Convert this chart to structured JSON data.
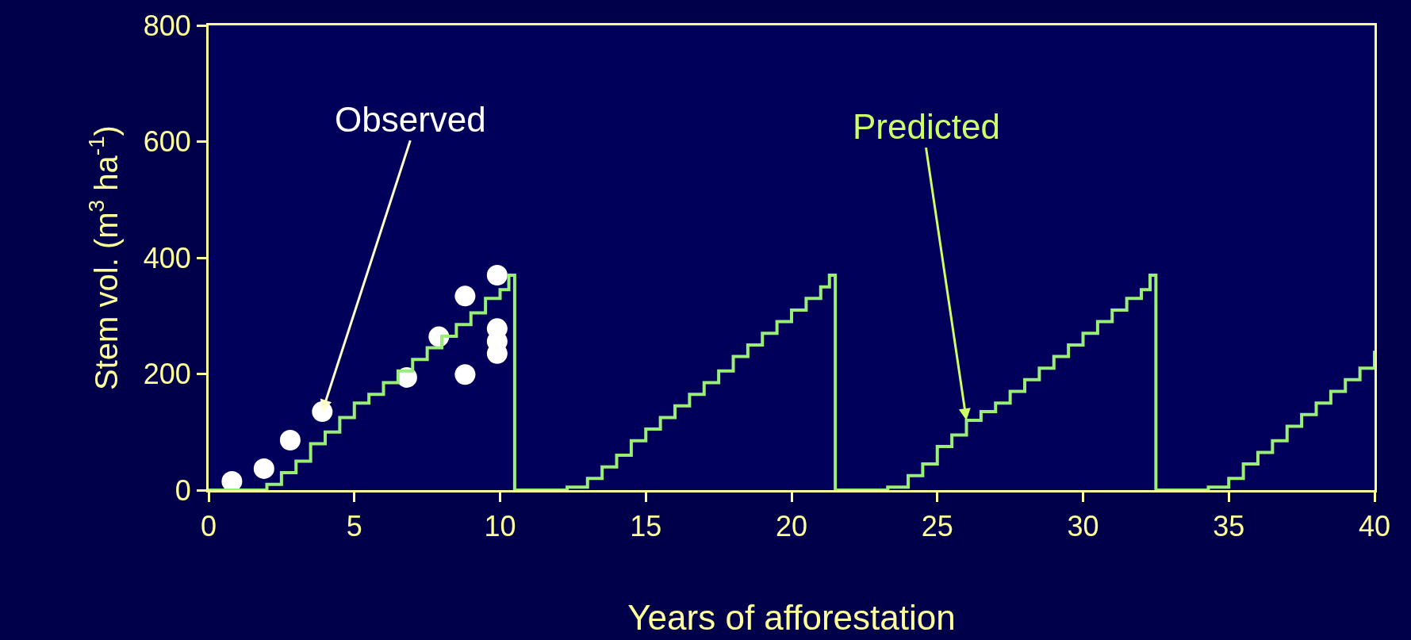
{
  "chart_data": {
    "type": "scatter",
    "xlabel": "Years of afforestation",
    "ylabel": "Stem vol. (m$^{3}$ ha$^{-1}$)",
    "xlim": [
      0,
      40
    ],
    "xticks": [
      0,
      5,
      10,
      15,
      20,
      25,
      30,
      35,
      40
    ],
    "ylim": [
      0,
      800
    ],
    "yticks": [
      0,
      200,
      400,
      600,
      800
    ],
    "grid": false,
    "series": [
      {
        "type": "step",
        "color": "#99ee77",
        "marker": "none",
        "x": [
          0,
          1.5,
          2,
          2.5,
          3,
          3.5,
          4,
          4.5,
          5,
          5.5,
          6,
          6.5,
          7,
          7.5,
          8,
          8.5,
          9,
          9.5,
          10,
          10.3,
          10.5,
          10.5,
          12.3,
          12.5,
          13,
          13.5,
          14,
          14.5,
          15,
          15.5,
          16,
          16.5,
          17,
          17.5,
          18,
          18.5,
          19,
          19.5,
          20,
          20.5,
          21,
          21.3,
          21.5,
          21.5,
          23.3,
          23.5,
          24,
          24.5,
          25,
          25.5,
          26,
          26.5,
          27,
          27.5,
          28,
          28.5,
          29,
          29.5,
          30,
          30.5,
          31,
          31.5,
          32,
          32.3,
          32.5,
          32.5,
          34.3,
          34.5,
          35,
          35.5,
          36,
          36.5,
          37,
          37.5,
          38,
          38.5,
          39,
          39.5,
          40
        ],
        "values": [
          0,
          0,
          10,
          30,
          50,
          80,
          100,
          125,
          150,
          165,
          185,
          205,
          225,
          245,
          265,
          285,
          305,
          330,
          345,
          370,
          370,
          0,
          5,
          5,
          20,
          40,
          60,
          85,
          105,
          125,
          145,
          165,
          185,
          205,
          230,
          250,
          270,
          290,
          310,
          330,
          350,
          370,
          370,
          0,
          5,
          5,
          25,
          45,
          75,
          95,
          120,
          135,
          150,
          170,
          190,
          210,
          230,
          250,
          270,
          290,
          310,
          330,
          345,
          370,
          370,
          0,
          5,
          5,
          20,
          45,
          65,
          85,
          110,
          130,
          150,
          170,
          190,
          210,
          240
        ]
      },
      {
        "color": "#ffffff",
        "marker": "circle",
        "x": [
          0.8,
          1.9,
          2.8,
          3.9,
          6.8,
          7.9,
          8.8,
          8.8,
          9.9,
          9.9,
          9.9,
          9.9
        ],
        "values": [
          15,
          37,
          86,
          135,
          194,
          264,
          334,
          199,
          370,
          278,
          256,
          235
        ]
      }
    ],
    "annotations": [
      {
        "text": "Observed",
        "x": 3.9,
        "y": 135
      },
      {
        "text": "Predicted",
        "x": 26,
        "y": 120
      }
    ]
  }
}
